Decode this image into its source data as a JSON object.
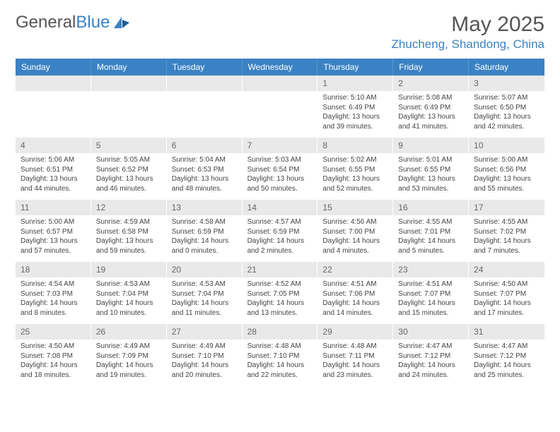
{
  "logo": {
    "text_general": "General",
    "text_blue": "Blue"
  },
  "title": "May 2025",
  "location": "Zhucheng, Shandong, China",
  "weekdays": [
    "Sunday",
    "Monday",
    "Tuesday",
    "Wednesday",
    "Thursday",
    "Friday",
    "Saturday"
  ],
  "colors": {
    "header_bar": "#3b82c4",
    "header_text": "#ffffff",
    "day_num_bg": "#e9e9e9",
    "body_text": "#444444",
    "title_text": "#555555",
    "location_text": "#3b82c4"
  },
  "weeks": [
    [
      {
        "empty": true
      },
      {
        "empty": true
      },
      {
        "empty": true
      },
      {
        "empty": true
      },
      {
        "day": "1",
        "sunrise": "Sunrise: 5:10 AM",
        "sunset": "Sunset: 6:49 PM",
        "daylight": "Daylight: 13 hours and 39 minutes."
      },
      {
        "day": "2",
        "sunrise": "Sunrise: 5:08 AM",
        "sunset": "Sunset: 6:49 PM",
        "daylight": "Daylight: 13 hours and 41 minutes."
      },
      {
        "day": "3",
        "sunrise": "Sunrise: 5:07 AM",
        "sunset": "Sunset: 6:50 PM",
        "daylight": "Daylight: 13 hours and 42 minutes."
      }
    ],
    [
      {
        "day": "4",
        "sunrise": "Sunrise: 5:06 AM",
        "sunset": "Sunset: 6:51 PM",
        "daylight": "Daylight: 13 hours and 44 minutes."
      },
      {
        "day": "5",
        "sunrise": "Sunrise: 5:05 AM",
        "sunset": "Sunset: 6:52 PM",
        "daylight": "Daylight: 13 hours and 46 minutes."
      },
      {
        "day": "6",
        "sunrise": "Sunrise: 5:04 AM",
        "sunset": "Sunset: 6:53 PM",
        "daylight": "Daylight: 13 hours and 48 minutes."
      },
      {
        "day": "7",
        "sunrise": "Sunrise: 5:03 AM",
        "sunset": "Sunset: 6:54 PM",
        "daylight": "Daylight: 13 hours and 50 minutes."
      },
      {
        "day": "8",
        "sunrise": "Sunrise: 5:02 AM",
        "sunset": "Sunset: 6:55 PM",
        "daylight": "Daylight: 13 hours and 52 minutes."
      },
      {
        "day": "9",
        "sunrise": "Sunrise: 5:01 AM",
        "sunset": "Sunset: 6:55 PM",
        "daylight": "Daylight: 13 hours and 53 minutes."
      },
      {
        "day": "10",
        "sunrise": "Sunrise: 5:00 AM",
        "sunset": "Sunset: 6:56 PM",
        "daylight": "Daylight: 13 hours and 55 minutes."
      }
    ],
    [
      {
        "day": "11",
        "sunrise": "Sunrise: 5:00 AM",
        "sunset": "Sunset: 6:57 PM",
        "daylight": "Daylight: 13 hours and 57 minutes."
      },
      {
        "day": "12",
        "sunrise": "Sunrise: 4:59 AM",
        "sunset": "Sunset: 6:58 PM",
        "daylight": "Daylight: 13 hours and 59 minutes."
      },
      {
        "day": "13",
        "sunrise": "Sunrise: 4:58 AM",
        "sunset": "Sunset: 6:59 PM",
        "daylight": "Daylight: 14 hours and 0 minutes."
      },
      {
        "day": "14",
        "sunrise": "Sunrise: 4:57 AM",
        "sunset": "Sunset: 6:59 PM",
        "daylight": "Daylight: 14 hours and 2 minutes."
      },
      {
        "day": "15",
        "sunrise": "Sunrise: 4:56 AM",
        "sunset": "Sunset: 7:00 PM",
        "daylight": "Daylight: 14 hours and 4 minutes."
      },
      {
        "day": "16",
        "sunrise": "Sunrise: 4:55 AM",
        "sunset": "Sunset: 7:01 PM",
        "daylight": "Daylight: 14 hours and 5 minutes."
      },
      {
        "day": "17",
        "sunrise": "Sunrise: 4:55 AM",
        "sunset": "Sunset: 7:02 PM",
        "daylight": "Daylight: 14 hours and 7 minutes."
      }
    ],
    [
      {
        "day": "18",
        "sunrise": "Sunrise: 4:54 AM",
        "sunset": "Sunset: 7:03 PM",
        "daylight": "Daylight: 14 hours and 8 minutes."
      },
      {
        "day": "19",
        "sunrise": "Sunrise: 4:53 AM",
        "sunset": "Sunset: 7:04 PM",
        "daylight": "Daylight: 14 hours and 10 minutes."
      },
      {
        "day": "20",
        "sunrise": "Sunrise: 4:53 AM",
        "sunset": "Sunset: 7:04 PM",
        "daylight": "Daylight: 14 hours and 11 minutes."
      },
      {
        "day": "21",
        "sunrise": "Sunrise: 4:52 AM",
        "sunset": "Sunset: 7:05 PM",
        "daylight": "Daylight: 14 hours and 13 minutes."
      },
      {
        "day": "22",
        "sunrise": "Sunrise: 4:51 AM",
        "sunset": "Sunset: 7:06 PM",
        "daylight": "Daylight: 14 hours and 14 minutes."
      },
      {
        "day": "23",
        "sunrise": "Sunrise: 4:51 AM",
        "sunset": "Sunset: 7:07 PM",
        "daylight": "Daylight: 14 hours and 15 minutes."
      },
      {
        "day": "24",
        "sunrise": "Sunrise: 4:50 AM",
        "sunset": "Sunset: 7:07 PM",
        "daylight": "Daylight: 14 hours and 17 minutes."
      }
    ],
    [
      {
        "day": "25",
        "sunrise": "Sunrise: 4:50 AM",
        "sunset": "Sunset: 7:08 PM",
        "daylight": "Daylight: 14 hours and 18 minutes."
      },
      {
        "day": "26",
        "sunrise": "Sunrise: 4:49 AM",
        "sunset": "Sunset: 7:09 PM",
        "daylight": "Daylight: 14 hours and 19 minutes."
      },
      {
        "day": "27",
        "sunrise": "Sunrise: 4:49 AM",
        "sunset": "Sunset: 7:10 PM",
        "daylight": "Daylight: 14 hours and 20 minutes."
      },
      {
        "day": "28",
        "sunrise": "Sunrise: 4:48 AM",
        "sunset": "Sunset: 7:10 PM",
        "daylight": "Daylight: 14 hours and 22 minutes."
      },
      {
        "day": "29",
        "sunrise": "Sunrise: 4:48 AM",
        "sunset": "Sunset: 7:11 PM",
        "daylight": "Daylight: 14 hours and 23 minutes."
      },
      {
        "day": "30",
        "sunrise": "Sunrise: 4:47 AM",
        "sunset": "Sunset: 7:12 PM",
        "daylight": "Daylight: 14 hours and 24 minutes."
      },
      {
        "day": "31",
        "sunrise": "Sunrise: 4:47 AM",
        "sunset": "Sunset: 7:12 PM",
        "daylight": "Daylight: 14 hours and 25 minutes."
      }
    ]
  ]
}
